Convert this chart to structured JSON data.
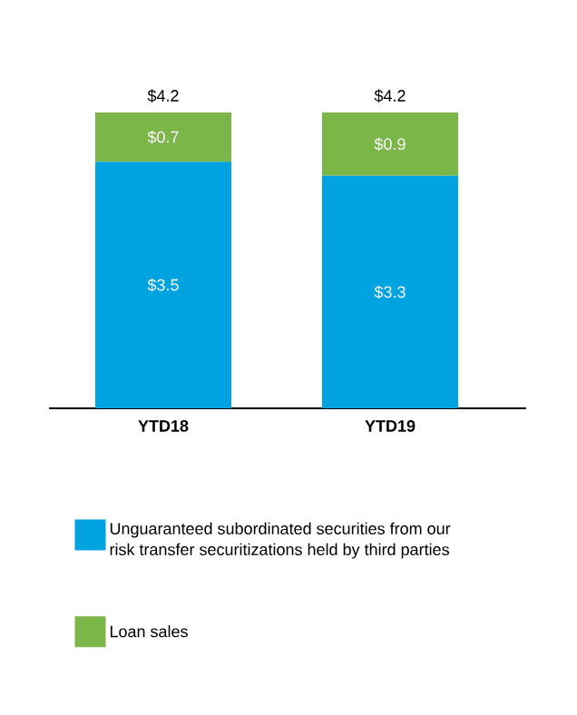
{
  "chart_data": {
    "type": "bar",
    "stacked": true,
    "categories": [
      "YTD18",
      "YTD19"
    ],
    "series": [
      {
        "name": "Unguaranteed subordinated securities from our risk transfer securitizations held by third parties",
        "color": "#00a3e0",
        "values": [
          3.5,
          3.3
        ],
        "value_labels": [
          "$3.5",
          "$3.3"
        ]
      },
      {
        "name": "Loan sales",
        "color": "#7ab648",
        "values": [
          0.7,
          0.9
        ],
        "value_labels": [
          "$0.7",
          "$0.9"
        ]
      }
    ],
    "totals": [
      "$4.2",
      "$4.2"
    ],
    "legend": "bottom"
  }
}
